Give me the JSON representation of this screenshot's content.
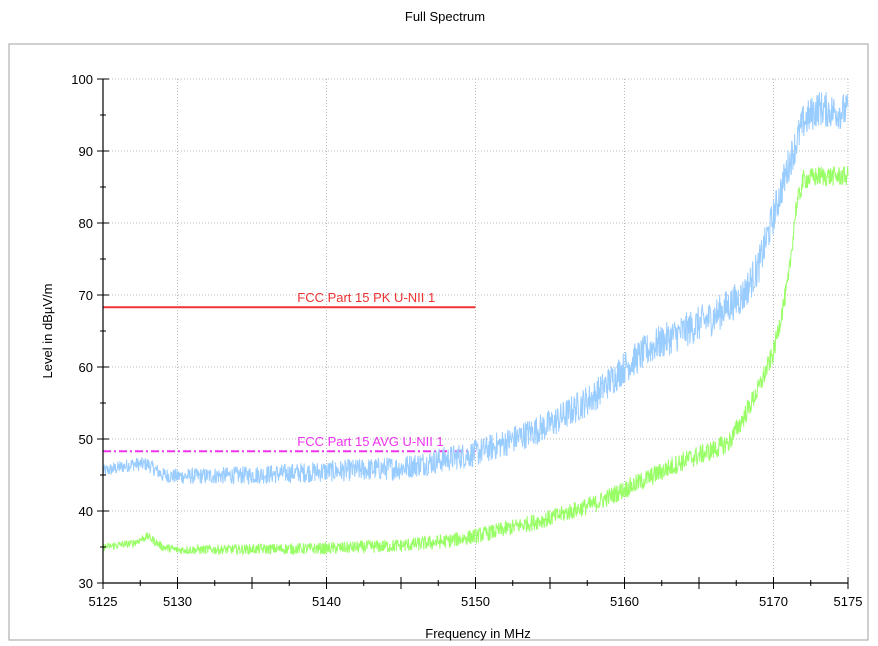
{
  "chart_data": {
    "type": "line",
    "title": "Full Spectrum",
    "xlabel": "Frequency in MHz",
    "ylabel": "Level in dBµV/m",
    "xlim": [
      5125,
      5175
    ],
    "ylim": [
      30,
      100
    ],
    "x_ticks": [
      5125,
      5130,
      5140,
      5150,
      5160,
      5170,
      5175
    ],
    "y_ticks": [
      30,
      40,
      50,
      60,
      70,
      80,
      90,
      100
    ],
    "grid": true,
    "series": [
      {
        "color": "#99ccff",
        "x": [
          5125,
          5127,
          5128,
          5129,
          5130,
          5135,
          5140,
          5145,
          5150,
          5152,
          5155,
          5158,
          5160,
          5162,
          5164,
          5166,
          5168,
          5169,
          5170,
          5171,
          5172,
          5173,
          5174,
          5175
        ],
        "values": [
          45.5,
          46.5,
          46.5,
          45,
          44.8,
          45,
          45.5,
          46,
          48,
          49.5,
          52,
          56,
          60,
          63,
          65,
          67,
          70,
          74,
          81,
          88,
          94,
          96,
          95.5,
          95.5
        ],
        "noise": 2.5
      },
      {
        "color": "#99ff66",
        "x": [
          5125,
          5127,
          5128,
          5129,
          5130,
          5135,
          5140,
          5145,
          5148,
          5150,
          5152,
          5155,
          5158,
          5160,
          5162,
          5164,
          5166,
          5167,
          5168,
          5169,
          5170,
          5171,
          5171.5,
          5172,
          5173,
          5175
        ],
        "values": [
          35,
          35.5,
          36.5,
          35,
          34.6,
          34.7,
          34.8,
          35.2,
          35.8,
          36.5,
          37.5,
          39,
          41,
          43,
          45,
          47,
          48.5,
          49.5,
          53,
          57,
          62,
          72,
          82,
          86,
          86.5,
          86.5
        ],
        "noise": 1.4
      }
    ],
    "limits": [
      {
        "label": "FCC Part 15  PK  U-NII 1",
        "value": 68.3,
        "x_start": 5125,
        "x_end": 5150,
        "color": "#ee3333",
        "style": "solid"
      },
      {
        "label": "FCC Part 15  AVG  U-NII 1",
        "value": 48.3,
        "x_start": 5125,
        "x_end": 5150,
        "color": "#ee33ee",
        "style": "dash-dot"
      }
    ]
  }
}
